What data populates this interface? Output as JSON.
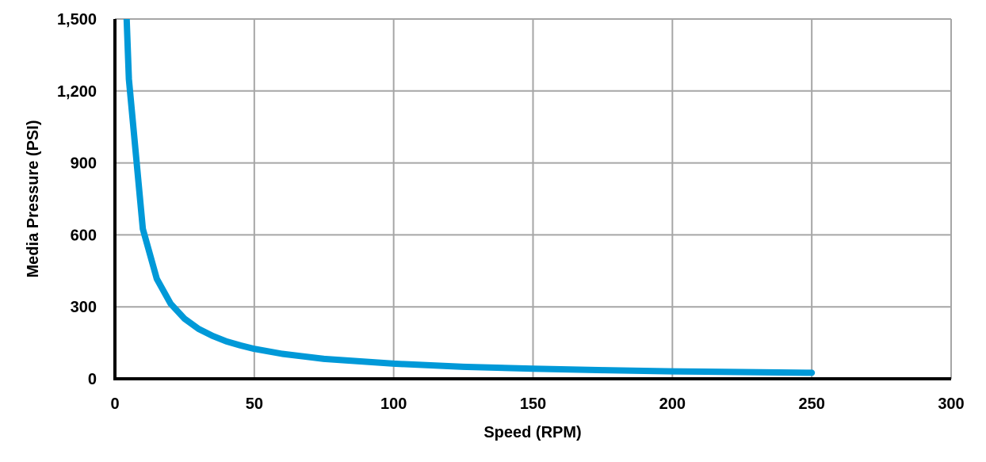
{
  "chart_data": {
    "type": "line",
    "title": "",
    "xlabel": "Speed (RPM)",
    "ylabel": "Media Pressure (PSI)",
    "xlim": [
      0,
      300
    ],
    "ylim": [
      0,
      1500
    ],
    "x_ticks": [
      0,
      50,
      100,
      150,
      200,
      250,
      300
    ],
    "x_tick_labels": [
      "0",
      "50",
      "100",
      "150",
      "200",
      "250",
      "300"
    ],
    "y_ticks": [
      0,
      300,
      600,
      900,
      1200,
      1500
    ],
    "y_tick_labels": [
      "0",
      "300",
      "600",
      "900",
      "1,200",
      "1,500"
    ],
    "grid": true,
    "legend": null,
    "series": [
      {
        "name": "Media Pressure",
        "color": "#0099D8",
        "x": [
          4,
          5,
          10,
          15,
          20,
          25,
          30,
          35,
          40,
          45,
          50,
          60,
          75,
          100,
          125,
          150,
          175,
          200,
          225,
          250
        ],
        "values": [
          1562,
          1250,
          625,
          417,
          313,
          250,
          208,
          179,
          156,
          139,
          125,
          104,
          83,
          63,
          50,
          42,
          36,
          31,
          28,
          25
        ]
      }
    ]
  },
  "colors": {
    "line": "#0099D8",
    "grid": "#A6A6A6",
    "axis": "#000000"
  }
}
